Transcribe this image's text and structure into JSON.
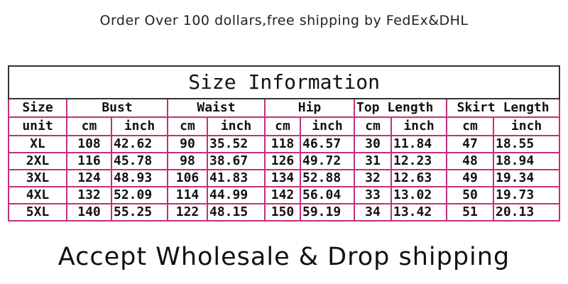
{
  "header_text": "Order Over 100 dollars,free shipping by FedEx&DHL",
  "footer_text": "Accept Wholesale & Drop shipping",
  "table": {
    "title": "Size Information",
    "size_label": "Size",
    "unit_label": "unit",
    "groups": [
      "Bust",
      "Waist",
      "Hip",
      "Top Length",
      "Skirt Length"
    ],
    "units": [
      "cm",
      "inch"
    ],
    "rows": [
      {
        "size": "XL",
        "values": [
          "108",
          "42.62",
          "90",
          "35.52",
          "118",
          "46.57",
          "30",
          "11.84",
          "47",
          "18.55"
        ]
      },
      {
        "size": "2XL",
        "values": [
          "116",
          "45.78",
          "98",
          "38.67",
          "126",
          "49.72",
          "31",
          "12.23",
          "48",
          "18.94"
        ]
      },
      {
        "size": "3XL",
        "values": [
          "124",
          "48.93",
          "106",
          "41.83",
          "134",
          "52.88",
          "32",
          "12.63",
          "49",
          "19.34"
        ]
      },
      {
        "size": "4XL",
        "values": [
          "132",
          "52.09",
          "114",
          "44.99",
          "142",
          "56.04",
          "33",
          "13.02",
          "50",
          "19.73"
        ]
      },
      {
        "size": "5XL",
        "values": [
          "140",
          "55.25",
          "122",
          "48.15",
          "150",
          "59.19",
          "34",
          "13.42",
          "51",
          "20.13"
        ]
      }
    ]
  },
  "colors": {
    "grid": "#c2307a",
    "title_border": "#333333"
  }
}
